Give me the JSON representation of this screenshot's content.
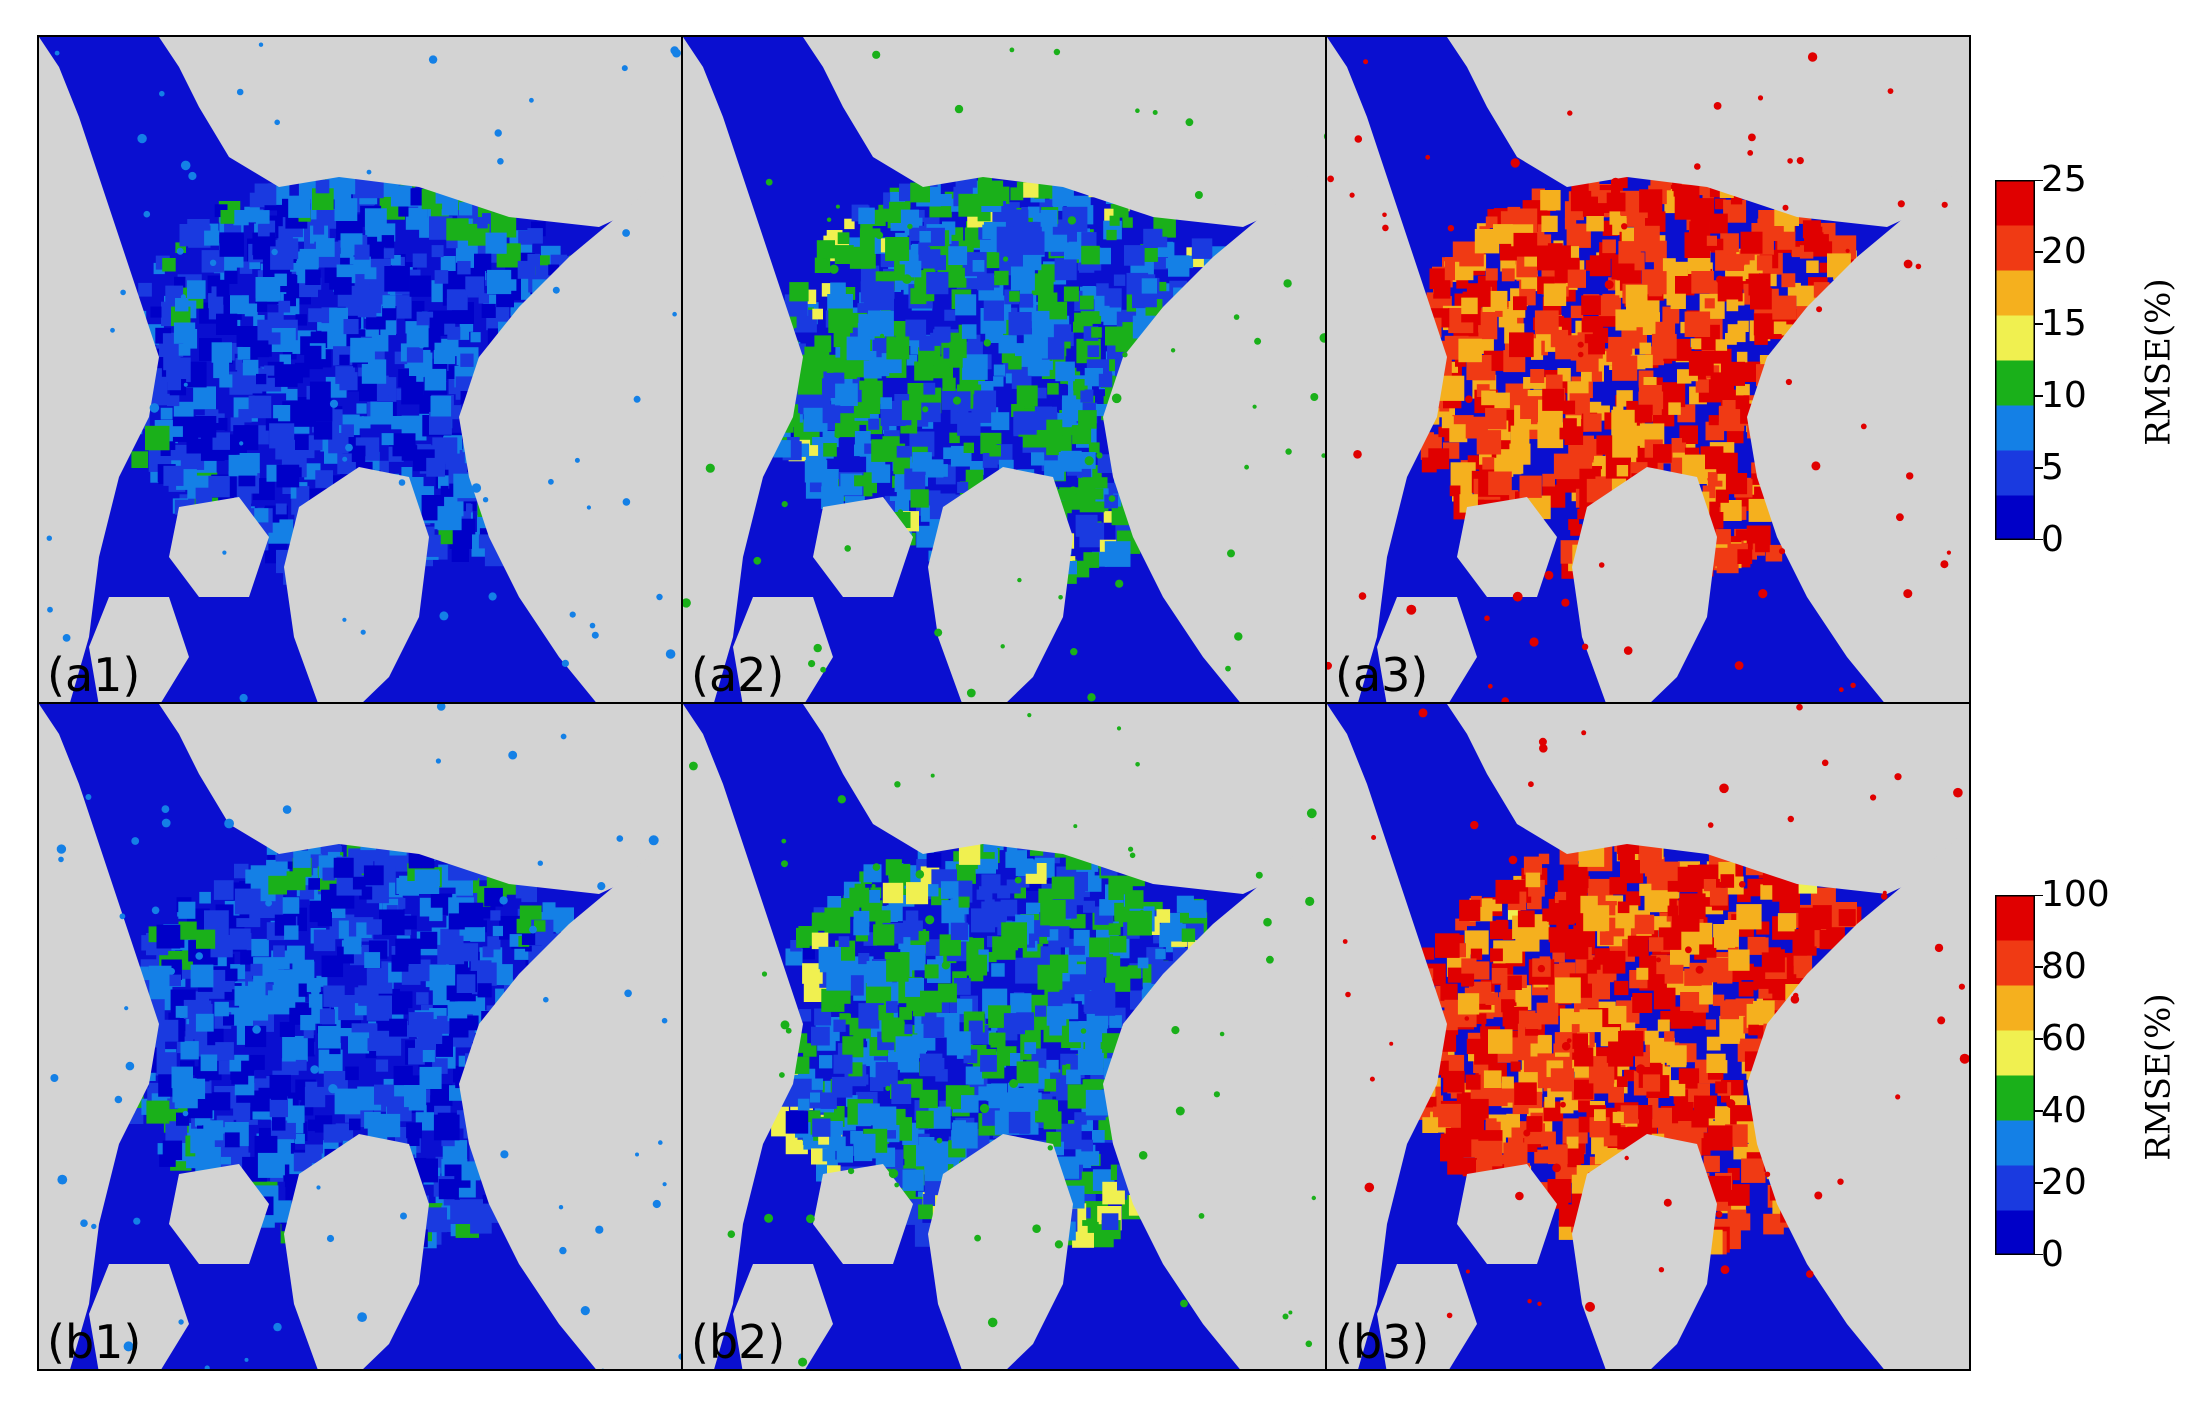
{
  "figure": {
    "colors": {
      "land": "#d3d3d3",
      "ocean": "#0a0fd0",
      "scale": [
        "#0000c8",
        "#1a3ae0",
        "#1480e6",
        "#1ab01a",
        "#f0f050",
        "#f5b01e",
        "#f03a14",
        "#e00000"
      ]
    },
    "panels": [
      {
        "label": "(a1)",
        "level": 0.12
      },
      {
        "label": "(a2)",
        "level": 0.35
      },
      {
        "label": "(a3)",
        "level": 0.85
      },
      {
        "label": "(b1)",
        "level": 0.12
      },
      {
        "label": "(b2)",
        "level": 0.35
      },
      {
        "label": "(b3)",
        "level": 0.85
      }
    ],
    "colorbars": [
      {
        "title": "RMSE(%)",
        "ticks": [
          "0",
          "5",
          "10",
          "15",
          "20",
          "25"
        ]
      },
      {
        "title": "RMSE(%)",
        "ticks": [
          "0",
          "20",
          "40",
          "60",
          "80",
          "100"
        ]
      }
    ]
  }
}
